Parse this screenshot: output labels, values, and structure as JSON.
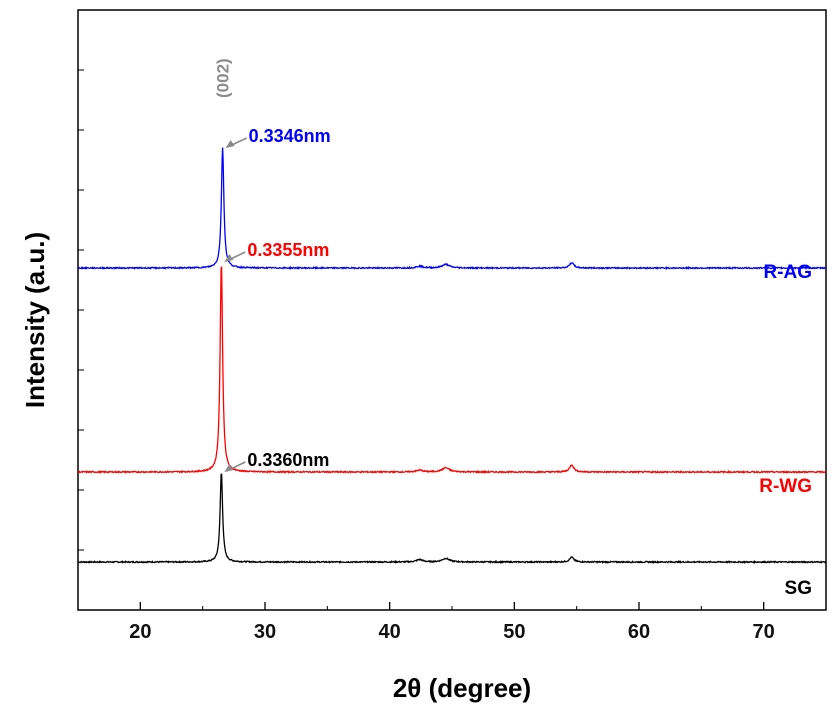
{
  "chart_data": {
    "type": "line",
    "title": "",
    "xlabel": "2θ (degree)",
    "ylabel": "Intensity (a.u.)",
    "xlim": [
      15,
      75
    ],
    "ylim": [
      0,
      10
    ],
    "x_ticks": [
      20,
      30,
      40,
      50,
      60,
      70
    ],
    "x_tick_labels": [
      "20",
      "30",
      "40",
      "50",
      "60",
      "70"
    ],
    "grid": false,
    "plane_label": "(002)",
    "series": [
      {
        "name": "SG",
        "color": "#000000",
        "baseline": 0.8,
        "peaks": [
          {
            "x": 26.5,
            "height": 1.5,
            "width": 0.12
          },
          {
            "x": 42.4,
            "height": 0.04,
            "width": 0.3
          },
          {
            "x": 44.5,
            "height": 0.06,
            "width": 0.35
          },
          {
            "x": 54.6,
            "height": 0.08,
            "width": 0.2
          }
        ],
        "annotation": "0.3360nm"
      },
      {
        "name": "R-WG",
        "color": "#ff0000",
        "baseline": 2.3,
        "peaks": [
          {
            "x": 26.5,
            "height": 3.5,
            "width": 0.12
          },
          {
            "x": 42.4,
            "height": 0.03,
            "width": 0.3
          },
          {
            "x": 44.5,
            "height": 0.07,
            "width": 0.35
          },
          {
            "x": 54.6,
            "height": 0.12,
            "width": 0.2
          }
        ],
        "annotation": "0.3355nm"
      },
      {
        "name": "R-AG",
        "color": "#0000ff",
        "baseline": 5.7,
        "peaks": [
          {
            "x": 26.6,
            "height": 2.0,
            "width": 0.12
          },
          {
            "x": 42.4,
            "height": 0.03,
            "width": 0.3
          },
          {
            "x": 44.5,
            "height": 0.06,
            "width": 0.35
          },
          {
            "x": 54.6,
            "height": 0.09,
            "width": 0.2
          }
        ],
        "annotation": "0.3346nm"
      }
    ]
  }
}
